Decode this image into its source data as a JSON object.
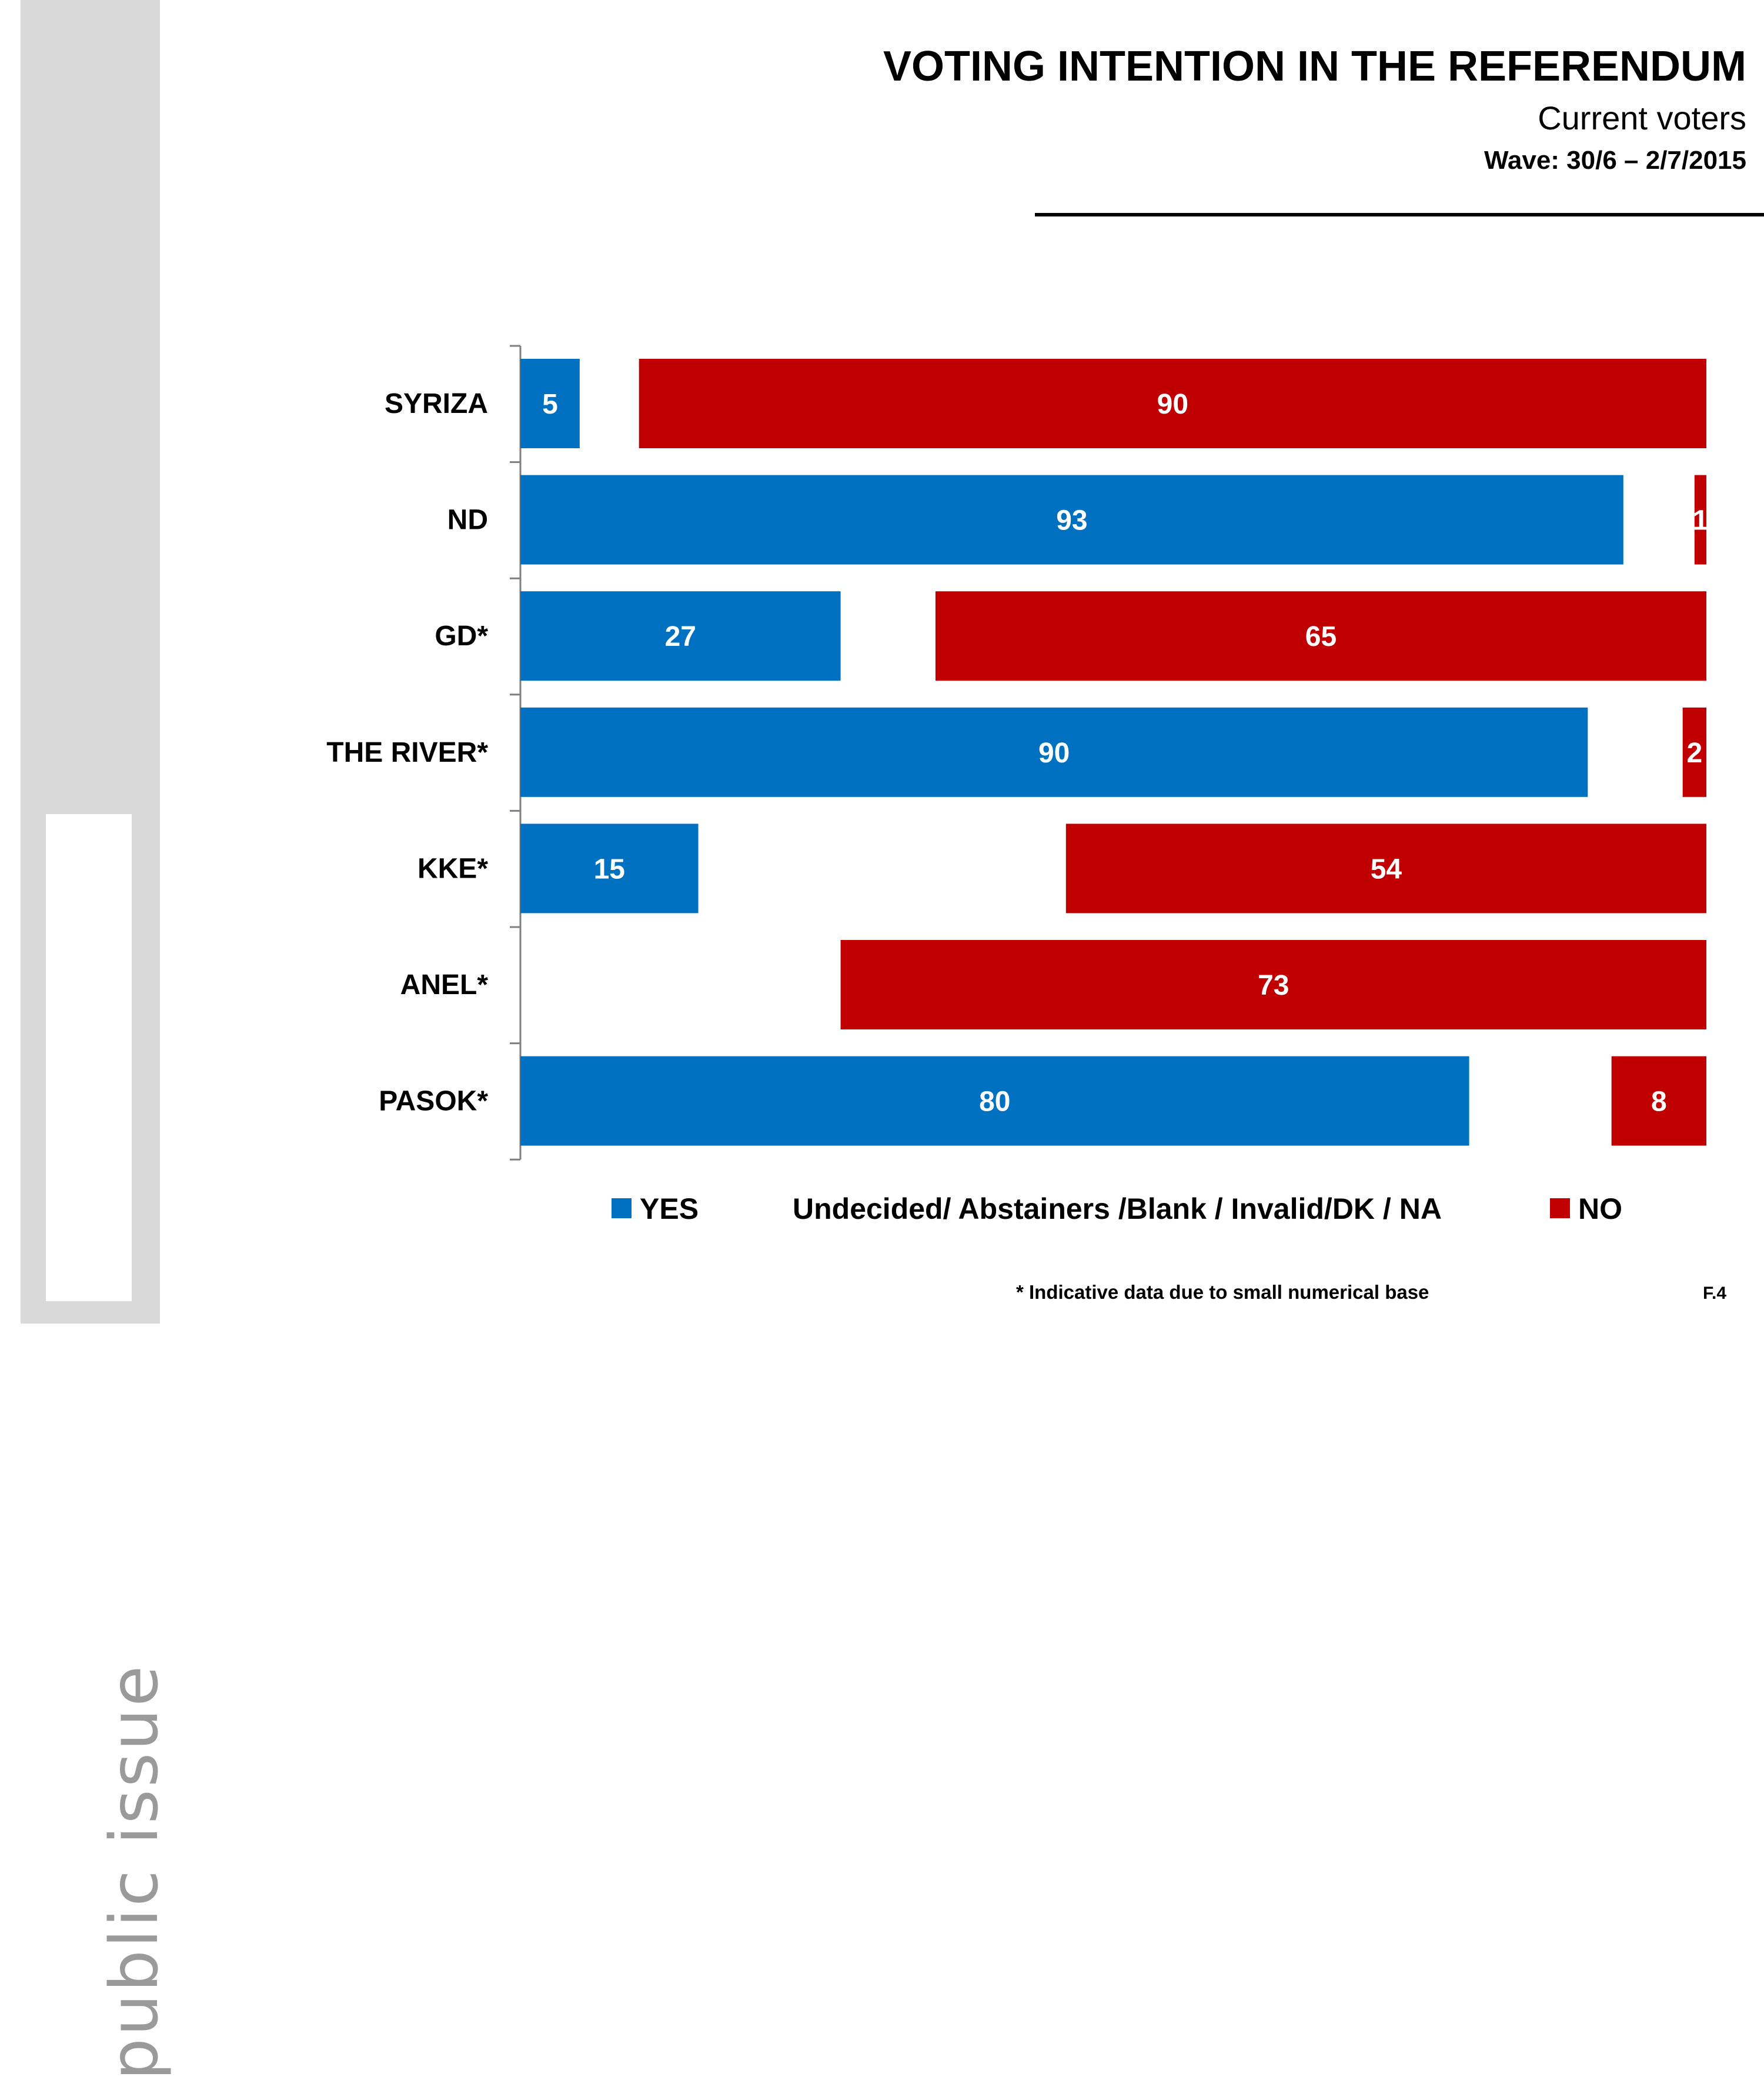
{
  "header": {
    "title": "VOTING INTENTION IN THE REFERENDUM",
    "subtitle": "Current voters",
    "wave": "Wave: 30/6 – 2/7/2015"
  },
  "logo": {
    "text": "public issue"
  },
  "footer": {
    "note": "* Indicative data due to small numerical base",
    "figure_id": "F.4"
  },
  "colors": {
    "yes": "#0070c0",
    "no": "#c00000",
    "background": "#ffffff",
    "side_band": "#d9d9d9"
  },
  "chart_data": {
    "type": "bar",
    "orientation": "horizontal",
    "stacked": true,
    "categories": [
      "SYRIZA",
      "ND",
      "GD*",
      "THE RIVER*",
      "KKE*",
      "ANEL*",
      "PASOK*"
    ],
    "series": [
      {
        "name": "YES",
        "values": [
          5,
          93,
          27,
          90,
          15,
          null,
          80
        ],
        "labels": [
          "5",
          "93",
          "27",
          "90",
          "15",
          "",
          "80"
        ]
      },
      {
        "name": "Undecided/ Abstainers /Blank / Invalid/DK / NA",
        "values": [
          5,
          6,
          8,
          8,
          31,
          27,
          12
        ],
        "labels": [
          "",
          "",
          "",
          "",
          "",
          "",
          ""
        ]
      },
      {
        "name": "NO",
        "values": [
          90,
          1,
          65,
          2,
          54,
          73,
          8
        ],
        "labels": [
          "90",
          "1",
          "65",
          "2",
          "54",
          "73",
          "8"
        ]
      }
    ],
    "xlim": [
      0,
      100
    ],
    "grid": false,
    "legend_position": "bottom"
  }
}
